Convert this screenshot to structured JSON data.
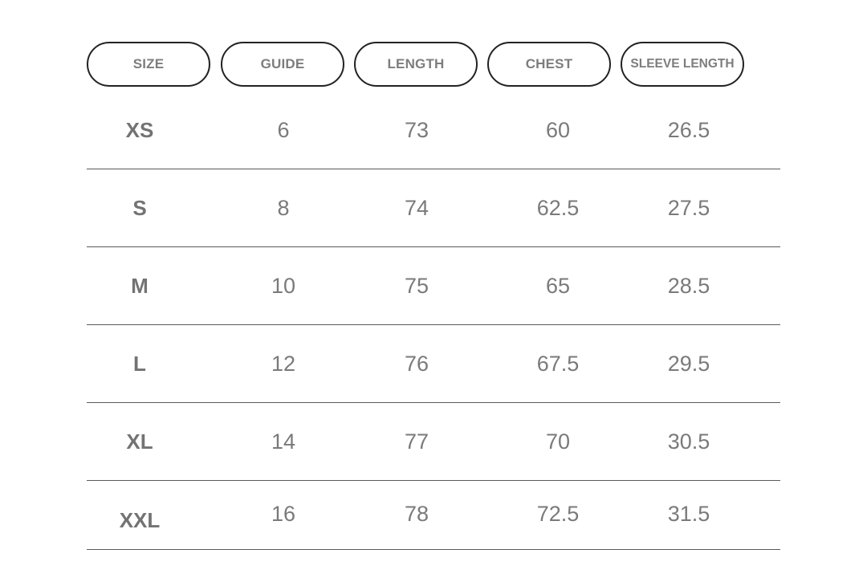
{
  "headers": [
    "SIZE",
    "GUIDE",
    "LENGTH",
    "CHEST",
    "SLEEVE LENGTH"
  ],
  "rows": [
    {
      "size": "XS",
      "guide": "6",
      "length": "73",
      "chest": "60",
      "sleeve": "26.5"
    },
    {
      "size": "S",
      "guide": "8",
      "length": "74",
      "chest": "62.5",
      "sleeve": "27.5"
    },
    {
      "size": "M",
      "guide": "10",
      "length": "75",
      "chest": "65",
      "sleeve": "28.5"
    },
    {
      "size": "L",
      "guide": "12",
      "length": "76",
      "chest": "67.5",
      "sleeve": "29.5"
    },
    {
      "size": "XL",
      "guide": "14",
      "length": "77",
      "chest": "70",
      "sleeve": "30.5"
    },
    {
      "size": "XXL",
      "guide": "16",
      "length": "78",
      "chest": "72.5",
      "sleeve": "31.5"
    }
  ],
  "colors": {
    "text": "#7a7a7a",
    "border": "#222222",
    "divider": "#5a5a5a",
    "background": "#ffffff"
  }
}
